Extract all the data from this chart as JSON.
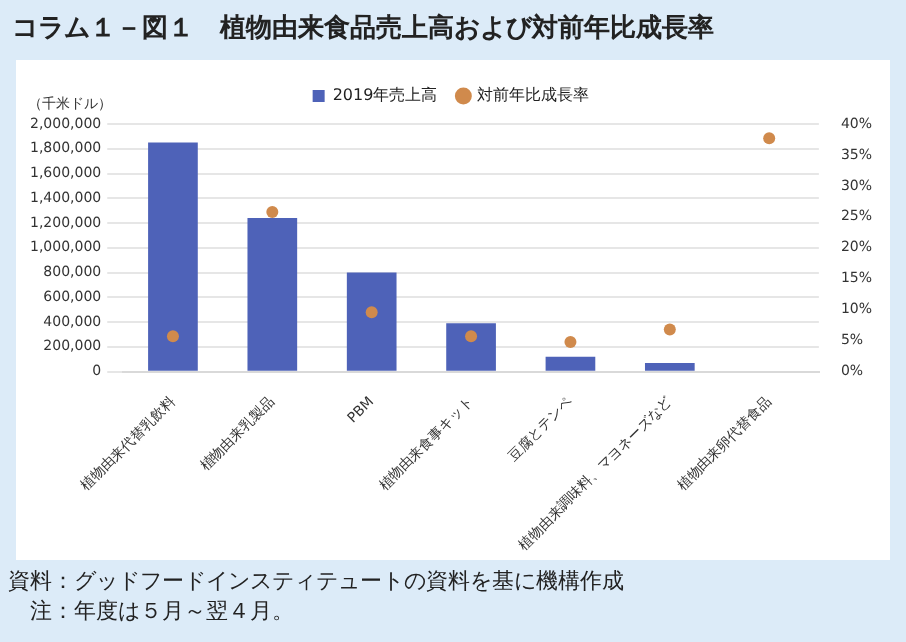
{
  "chart_data": {
    "type": "bar",
    "title": "コラム１－図１　植物由来食品売上高および対前年比成長率",
    "ylabel": "（千米ドル）",
    "categories": [
      "植物由来代替乳飲料",
      "植物由来乳製品",
      "PBM",
      "植物由来食事キット",
      "豆腐とテンペ",
      "植物由来調味料、マヨネーズなど",
      "植物由来卵代替食品"
    ],
    "series": [
      {
        "name": "2019年売上高",
        "color": "#4e62b8",
        "values": [
          1850000,
          1240000,
          800000,
          390000,
          120000,
          70000,
          null
        ]
      },
      {
        "name": "対前年比成長率",
        "type": "scatter",
        "axis": "y2",
        "color": "#d08a4c",
        "marker": "circle",
        "x": [
          "植物由来代替乳飲料",
          "植物由来乳製品",
          "PBM",
          "植物由来食事キット",
          "豆腐とテンペ",
          "植物由来調味料、マヨネーズなど",
          "植物由来卵代替食品"
        ],
        "values": [
          5.7,
          25.8,
          9.6,
          5.7,
          4.8,
          6.8,
          37.7
        ]
      }
    ],
    "ylim": [
      0,
      2000000
    ],
    "yticks": [
      {
        "value": 0,
        "label": "0"
      },
      {
        "value": 200000,
        "label": "200,000"
      },
      {
        "value": 400000,
        "label": "400,000"
      },
      {
        "value": 600000,
        "label": "600,000"
      },
      {
        "value": 800000,
        "label": "800,000"
      },
      {
        "value": 1000000,
        "label": "1,000,000"
      },
      {
        "value": 1200000,
        "label": "1,200,000"
      },
      {
        "value": 1400000,
        "label": "1,400,000"
      },
      {
        "value": 1600000,
        "label": "1,600,000"
      },
      {
        "value": 1800000,
        "label": "1,800,000"
      },
      {
        "value": 2000000,
        "label": "2,000,000"
      }
    ],
    "y2lim": [
      0,
      40
    ],
    "y2ticks": [
      {
        "value": 0,
        "label": "0%"
      },
      {
        "value": 5,
        "label": "5%"
      },
      {
        "value": 10,
        "label": "10%"
      },
      {
        "value": 15,
        "label": "15%"
      },
      {
        "value": 20,
        "label": "20%"
      },
      {
        "value": 25,
        "label": "25%"
      },
      {
        "value": 30,
        "label": "30%"
      },
      {
        "value": 35,
        "label": "35%"
      },
      {
        "value": 40,
        "label": "40%"
      }
    ],
    "grid": "y",
    "legend": "top",
    "annotations": [
      "資料：グッドフードインスティテュートの資料を基に機構作成",
      "　注：年度は５月～翌４月。"
    ]
  }
}
